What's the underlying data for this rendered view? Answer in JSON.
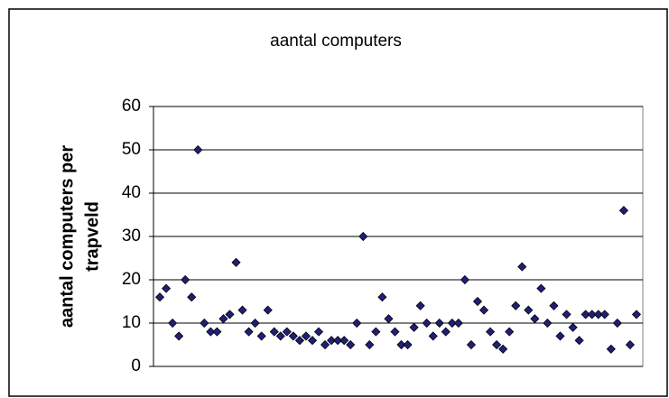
{
  "chart_data": {
    "type": "scatter",
    "title": "aantal computers",
    "y_label_lines": [
      "aantal computers per",
      "trapveld"
    ],
    "x": [
      1,
      2,
      3,
      4,
      5,
      6,
      7,
      8,
      9,
      10,
      11,
      12,
      13,
      14,
      15,
      16,
      17,
      18,
      19,
      20,
      21,
      22,
      23,
      24,
      25,
      26,
      27,
      28,
      29,
      30,
      31,
      32,
      33,
      34,
      35,
      36,
      37,
      38,
      39,
      40,
      41,
      42,
      43,
      44,
      45,
      46,
      47,
      48,
      49,
      50,
      51,
      52,
      53,
      54,
      55,
      56,
      57,
      58,
      59,
      60,
      61,
      62,
      63,
      64,
      65,
      66,
      67,
      68,
      69,
      70,
      71,
      72,
      73,
      74,
      75,
      76
    ],
    "values": [
      16,
      18,
      10,
      7,
      20,
      16,
      50,
      10,
      8,
      8,
      11,
      12,
      24,
      13,
      8,
      10,
      7,
      13,
      8,
      7,
      8,
      7,
      6,
      7,
      6,
      8,
      5,
      6,
      6,
      6,
      5,
      10,
      30,
      5,
      8,
      16,
      11,
      8,
      5,
      5,
      9,
      14,
      10,
      7,
      10,
      8,
      10,
      10,
      20,
      5,
      15,
      13,
      8,
      5,
      4,
      8,
      14,
      23,
      13,
      11,
      18,
      10,
      14,
      7,
      12,
      9,
      6,
      12,
      12,
      12,
      12,
      4,
      10,
      36,
      5,
      12
    ],
    "color": "#1f1f7a",
    "xlim": [
      0,
      77
    ],
    "ylim": [
      0,
      60
    ],
    "yticks": [
      0,
      10,
      20,
      30,
      40,
      50,
      60
    ],
    "grid": true
  }
}
